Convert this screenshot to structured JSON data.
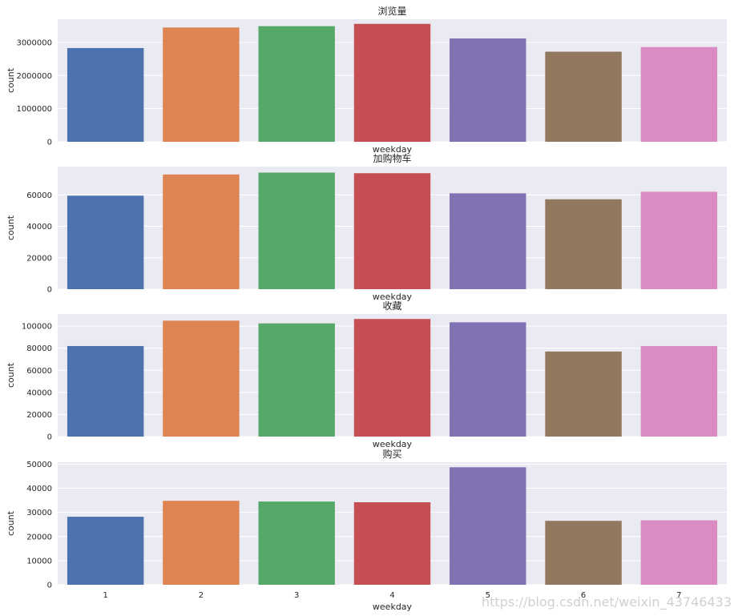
{
  "watermark": "https://blog.csdn.net/weixin_43746433",
  "palette": [
    "#4c72b0",
    "#dd8452",
    "#55a868",
    "#c44e52",
    "#8172b3",
    "#937860",
    "#da8bc3"
  ],
  "chart_data": [
    {
      "type": "bar",
      "title": "浏览量",
      "xlabel": "weekday",
      "ylabel": "count",
      "categories": [
        "1",
        "2",
        "3",
        "4",
        "5",
        "6",
        "7"
      ],
      "values": [
        2830000,
        3450000,
        3490000,
        3560000,
        3120000,
        2720000,
        2860000
      ],
      "ylim": [
        0,
        3700000
      ],
      "yticks": [
        "0",
        "1000000",
        "2000000",
        "3000000"
      ],
      "ytick_values": [
        0,
        1000000,
        2000000,
        3000000
      ],
      "grid": true
    },
    {
      "type": "bar",
      "title": "加购物车",
      "xlabel": "weekday",
      "ylabel": "count",
      "categories": [
        "1",
        "2",
        "3",
        "4",
        "5",
        "6",
        "7"
      ],
      "values": [
        59500,
        73000,
        74200,
        73800,
        61000,
        57200,
        62000
      ],
      "ylim": [
        0,
        78000
      ],
      "yticks": [
        "0",
        "20000",
        "40000",
        "60000"
      ],
      "ytick_values": [
        0,
        20000,
        40000,
        60000
      ],
      "grid": true
    },
    {
      "type": "bar",
      "title": "收藏",
      "xlabel": "weekday",
      "ylabel": "count",
      "categories": [
        "1",
        "2",
        "3",
        "4",
        "5",
        "6",
        "7"
      ],
      "values": [
        82000,
        105000,
        102500,
        106500,
        103500,
        77000,
        82000
      ],
      "ylim": [
        0,
        111000
      ],
      "yticks": [
        "0",
        "20000",
        "40000",
        "60000",
        "80000",
        "100000"
      ],
      "ytick_values": [
        0,
        20000,
        40000,
        60000,
        80000,
        100000
      ],
      "grid": true
    },
    {
      "type": "bar",
      "title": "购买",
      "xlabel": "weekday",
      "ylabel": "count",
      "categories": [
        "1",
        "2",
        "3",
        "4",
        "5",
        "6",
        "7"
      ],
      "values": [
        28200,
        34800,
        34500,
        34200,
        48700,
        26500,
        26700
      ],
      "ylim": [
        0,
        50800
      ],
      "yticks": [
        "0",
        "10000",
        "20000",
        "30000",
        "40000",
        "50000"
      ],
      "ytick_values": [
        0,
        10000,
        20000,
        30000,
        40000,
        50000
      ],
      "grid": true,
      "show_xticks": true
    }
  ]
}
